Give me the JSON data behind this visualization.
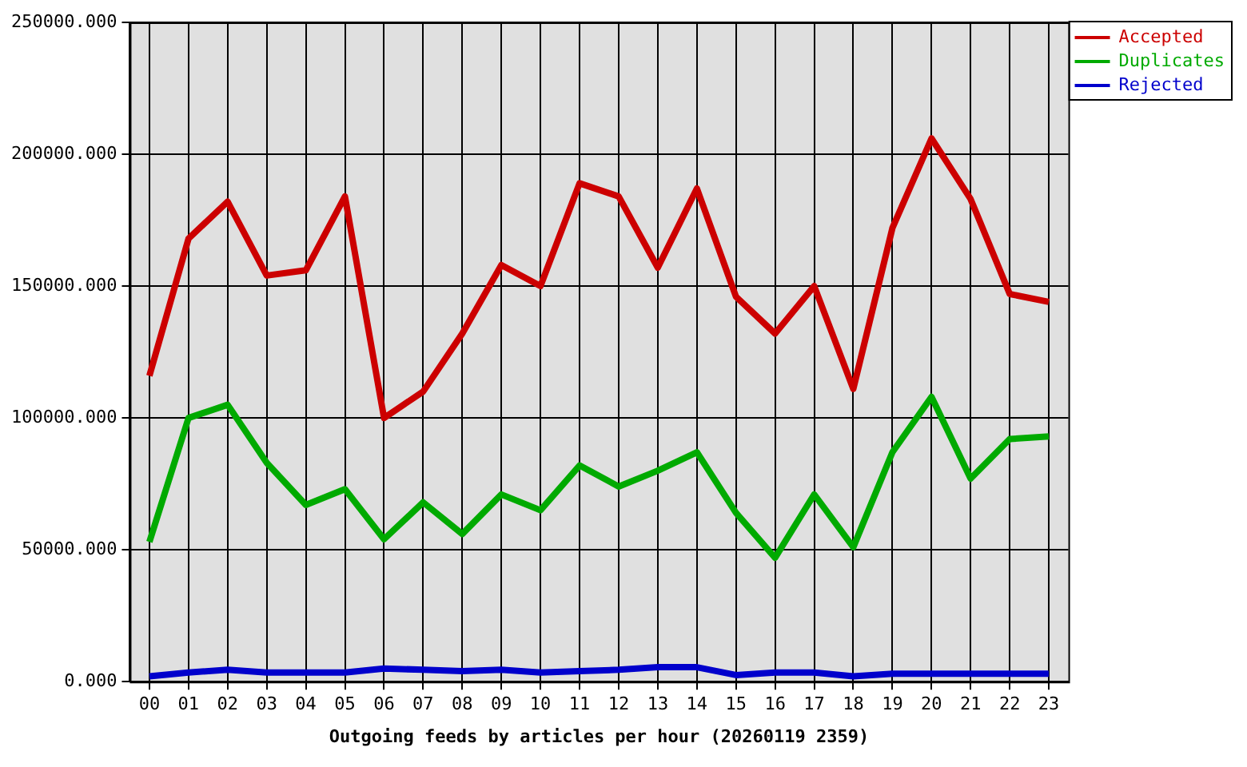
{
  "chart_data": {
    "type": "line",
    "xlabel": "Outgoing feeds by articles per hour (20260119 2359)",
    "categories": [
      "00",
      "01",
      "02",
      "03",
      "04",
      "05",
      "06",
      "07",
      "08",
      "09",
      "10",
      "11",
      "12",
      "13",
      "14",
      "15",
      "16",
      "17",
      "18",
      "19",
      "20",
      "21",
      "22",
      "23"
    ],
    "series": [
      {
        "name": "Accepted",
        "color": "#cc0000",
        "values": [
          116000,
          168000,
          182000,
          154000,
          156000,
          184000,
          100000,
          110000,
          132000,
          158000,
          150000,
          189000,
          184000,
          157000,
          187000,
          146000,
          132000,
          150000,
          111000,
          172000,
          206000,
          183000,
          147000,
          144000
        ]
      },
      {
        "name": "Duplicates",
        "color": "#00aa00",
        "values": [
          53000,
          100000,
          105000,
          83000,
          67000,
          73000,
          54000,
          68000,
          56000,
          71000,
          65000,
          82000,
          74000,
          80000,
          87000,
          64000,
          47000,
          71000,
          51000,
          87000,
          108000,
          77000,
          92000,
          93000
        ]
      },
      {
        "name": "Rejected",
        "color": "#0000cc",
        "values": [
          2000,
          3500,
          4500,
          3500,
          3500,
          3500,
          5000,
          4500,
          4000,
          4500,
          3500,
          4000,
          4500,
          5500,
          5500,
          2500,
          3500,
          3500,
          2000,
          3000,
          3000,
          3000,
          3000,
          3000
        ]
      }
    ],
    "ylim": [
      0,
      250000
    ],
    "yticks": [
      {
        "value": 0,
        "label": "0.000"
      },
      {
        "value": 50000,
        "label": "50000.000"
      },
      {
        "value": 100000,
        "label": "100000.000"
      },
      {
        "value": 150000,
        "label": "150000.000"
      },
      {
        "value": 200000,
        "label": "200000.000"
      },
      {
        "value": 250000,
        "label": "250000.000"
      }
    ],
    "grid": true,
    "legend": "top right",
    "marker": "none",
    "line_style": "solid"
  }
}
